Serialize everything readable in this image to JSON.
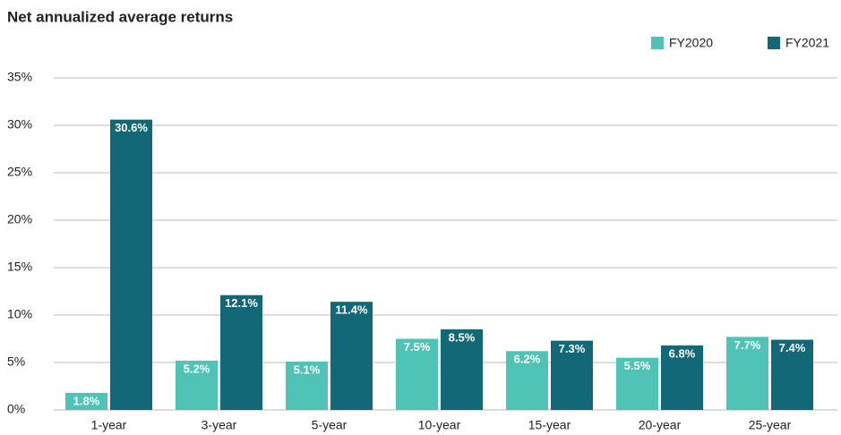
{
  "chart_data": {
    "type": "bar",
    "title": "Net annualized average returns",
    "categories": [
      "1-year",
      "3-year",
      "5-year",
      "10-year",
      "15-year",
      "20-year",
      "25-year"
    ],
    "series": [
      {
        "name": "FY2020",
        "color": "#4fc3b6",
        "values": [
          1.8,
          5.2,
          5.1,
          7.5,
          6.2,
          5.5,
          7.7
        ],
        "value_labels": [
          "1.8%",
          "5.2%",
          "5.1%",
          "7.5%",
          "6.2%",
          "5.5%",
          "7.7%"
        ]
      },
      {
        "name": "FY2021",
        "color": "#136878",
        "values": [
          30.6,
          12.1,
          11.4,
          8.5,
          7.3,
          6.8,
          7.4
        ],
        "value_labels": [
          "30.6%",
          "12.1%",
          "11.4%",
          "8.5%",
          "7.3%",
          "6.8%",
          "7.4%"
        ]
      }
    ],
    "ylim": [
      0,
      35
    ],
    "yticks": [
      {
        "value": 0,
        "label": "0%"
      },
      {
        "value": 5,
        "label": "5%"
      },
      {
        "value": 10,
        "label": "10%"
      },
      {
        "value": 15,
        "label": "15%"
      },
      {
        "value": 20,
        "label": "20%"
      },
      {
        "value": 25,
        "label": "25%"
      },
      {
        "value": 30,
        "label": "30%"
      },
      {
        "value": 35,
        "label": "35%"
      }
    ],
    "grid": true,
    "legend": "top-right"
  }
}
